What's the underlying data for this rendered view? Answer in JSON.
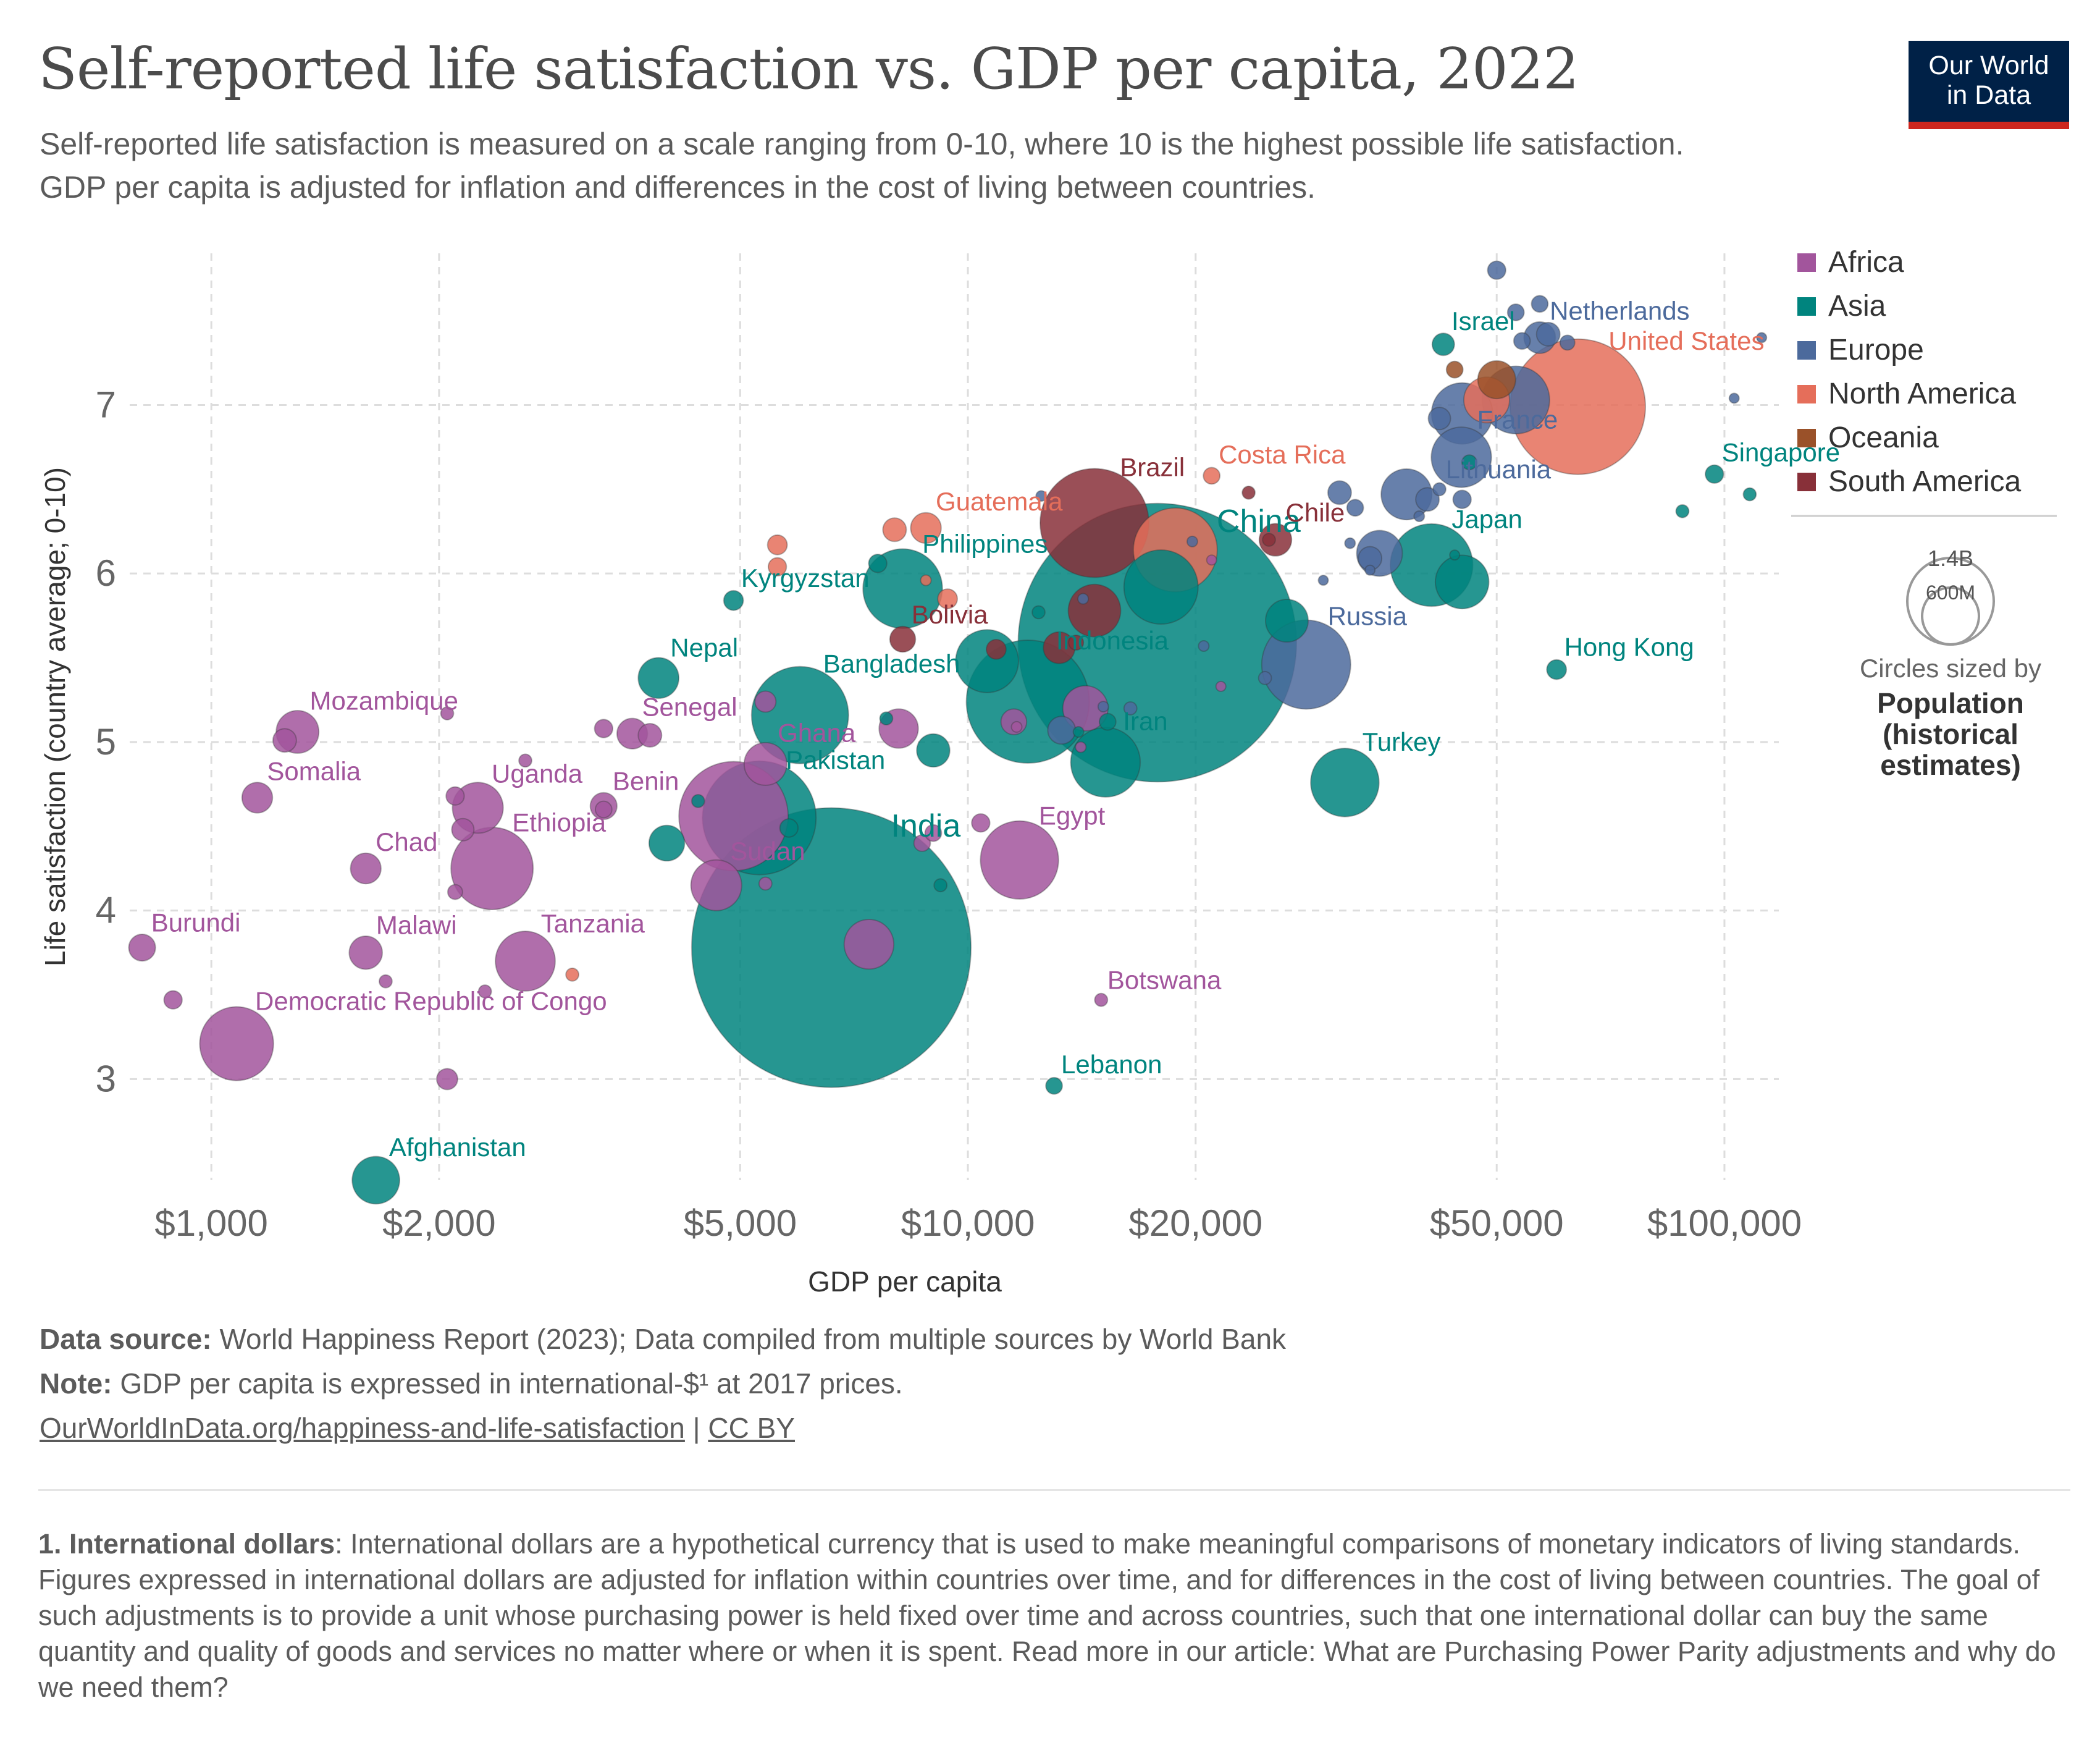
{
  "title": "Self-reported life satisfaction vs. GDP per capita, 2022",
  "subtitle": "Self-reported life satisfaction is measured on a scale ranging from 0-10, where 10 is the highest possible life satisfaction. GDP per capita is adjusted for inflation and differences in the cost of living between countries.",
  "logo": {
    "line1": "Our World",
    "line2": "in Data"
  },
  "colors": {
    "Africa": "#a2559c",
    "Asia": "#00847e",
    "Europe": "#4c6a9c",
    "North America": "#e56e5a",
    "Oceania": "#9a5129",
    "South America": "#883039"
  },
  "size_legend": {
    "big": "1.4B",
    "small": "600M",
    "caption1": "Circles sized by",
    "caption2": "Population",
    "caption3": "(historical",
    "caption4": "estimates)"
  },
  "footer": {
    "source_label": "Data source:",
    "source_text": "World Happiness Report (2023); Data compiled from multiple sources by World Bank",
    "note_label": "Note:",
    "note_text": "GDP per capita is expressed in international-$¹ at 2017 prices.",
    "url": "OurWorldInData.org/happiness-and-life-satisfaction",
    "separator": "|",
    "license": "CC BY"
  },
  "footnote": {
    "label": "1. International dollars",
    "text": ": International dollars are a hypothetical currency that is used to make meaningful comparisons of monetary indicators of living standards. Figures expressed in international dollars are adjusted for inflation within countries over time, and for differences in the cost of living between countries. The goal of such adjustments is to provide a unit whose purchasing power is held fixed over time and across countries, such that one international dollar can buy the same quantity and quality of goods and services no matter where or when it is spent. Read more in our article: What are Purchasing Power Parity adjustments and why do we need them?"
  },
  "chart_data": {
    "type": "scatter",
    "title": "Self-reported life satisfaction vs. GDP per capita, 2022",
    "xlabel": "GDP per capita",
    "ylabel": "Life satisfaction (country average; 0-10)",
    "x_scale": "log",
    "xlim": [
      780,
      118000
    ],
    "ylim": [
      2.4,
      7.9
    ],
    "x_ticks": [
      1000,
      2000,
      5000,
      10000,
      20000,
      50000,
      100000
    ],
    "x_tick_labels": [
      "$1,000",
      "$2,000",
      "$5,000",
      "$10,000",
      "$20,000",
      "$50,000",
      "$100,000"
    ],
    "y_ticks": [
      3,
      4,
      5,
      6,
      7
    ],
    "y_tick_labels": [
      "3",
      "4",
      "5",
      "6",
      "7"
    ],
    "grid": true,
    "legend": [
      "Africa",
      "Asia",
      "Europe",
      "North America",
      "Oceania",
      "South America"
    ],
    "legend_position": "right",
    "size_by": "Population (historical estimates)",
    "points": [
      {
        "label": "India",
        "region": "Asia",
        "x": 6600,
        "y": 3.78,
        "pop": 1420
      },
      {
        "label": "China",
        "region": "Asia",
        "x": 17800,
        "y": 5.59,
        "pop": 1410
      },
      {
        "label": "United States",
        "region": "North America",
        "x": 64000,
        "y": 6.99,
        "pop": 333
      },
      {
        "label": "Indonesia",
        "region": "Asia",
        "x": 12000,
        "y": 5.24,
        "pop": 275
      },
      {
        "label": "Pakistan",
        "region": "Asia",
        "x": 5300,
        "y": 4.55,
        "pop": 235
      },
      {
        "label": "Brazil",
        "region": "South America",
        "x": 14700,
        "y": 6.3,
        "pop": 215
      },
      {
        "label": "Bangladesh",
        "region": "Asia",
        "x": 6000,
        "y": 5.16,
        "pop": 171
      },
      {
        "label": "Russia",
        "region": "Europe",
        "x": 28000,
        "y": 5.46,
        "pop": 144
      },
      {
        "label": "Japan",
        "region": "Asia",
        "x": 41000,
        "y": 6.05,
        "pop": 124
      },
      {
        "label": "Philippines",
        "region": "Asia",
        "x": 8200,
        "y": 5.91,
        "pop": 115
      },
      {
        "label": "Egypt",
        "region": "Africa",
        "x": 11700,
        "y": 4.3,
        "pop": 111
      },
      {
        "label": "Ethiopia",
        "region": "Africa",
        "x": 2350,
        "y": 4.25,
        "pop": 123
      },
      {
        "label": "Democratic Republic of Congo",
        "region": "Africa",
        "x": 1080,
        "y": 3.21,
        "pop": 99
      },
      {
        "label": "Iran",
        "region": "Asia",
        "x": 15200,
        "y": 4.88,
        "pop": 88
      },
      {
        "label": "Turkey",
        "region": "Asia",
        "x": 31500,
        "y": 4.76,
        "pop": 85
      },
      {
        "label": "Tanzania",
        "region": "Africa",
        "x": 2600,
        "y": 3.7,
        "pop": 65
      },
      {
        "label": "Uganda",
        "region": "Africa",
        "x": 2250,
        "y": 4.61,
        "pop": 47
      },
      {
        "label": "Sudan",
        "region": "Africa",
        "x": 4650,
        "y": 4.15,
        "pop": 47
      },
      {
        "label": "France",
        "region": "Europe",
        "x": 44900,
        "y": 6.69,
        "pop": 66
      },
      {
        "label": "Costa Rica",
        "region": "North America",
        "x": 21000,
        "y": 6.58,
        "pop": 5
      },
      {
        "label": "Guatemala",
        "region": "North America",
        "x": 8800,
        "y": 6.27,
        "pop": 17
      },
      {
        "label": "Chile",
        "region": "South America",
        "x": 25500,
        "y": 6.2,
        "pop": 19
      },
      {
        "label": "Bolivia",
        "region": "South America",
        "x": 8200,
        "y": 5.61,
        "pop": 12
      },
      {
        "label": "Kyrgyzstan",
        "region": "Asia",
        "x": 4900,
        "y": 5.84,
        "pop": 7
      },
      {
        "label": "Nepal",
        "region": "Asia",
        "x": 3900,
        "y": 5.38,
        "pop": 30
      },
      {
        "label": "Senegal",
        "region": "Africa",
        "x": 3600,
        "y": 5.05,
        "pop": 17
      },
      {
        "label": "Ghana",
        "region": "Africa",
        "x": 5400,
        "y": 4.87,
        "pop": 33
      },
      {
        "label": "Benin",
        "region": "Africa",
        "x": 3300,
        "y": 4.62,
        "pop": 13
      },
      {
        "label": "Mozambique",
        "region": "Africa",
        "x": 1300,
        "y": 5.06,
        "pop": 33
      },
      {
        "label": "Somalia",
        "region": "Africa",
        "x": 1150,
        "y": 4.67,
        "pop": 17
      },
      {
        "label": "Chad",
        "region": "Africa",
        "x": 1600,
        "y": 4.25,
        "pop": 17
      },
      {
        "label": "Burundi",
        "region": "Africa",
        "x": 810,
        "y": 3.78,
        "pop": 13
      },
      {
        "label": "Malawi",
        "region": "Africa",
        "x": 1600,
        "y": 3.75,
        "pop": 20
      },
      {
        "label": "Botswana",
        "region": "Africa",
        "x": 15000,
        "y": 3.47,
        "pop": 3
      },
      {
        "label": "Lebanon",
        "region": "Asia",
        "x": 13000,
        "y": 2.96,
        "pop": 5
      },
      {
        "label": "Afghanistan",
        "region": "Asia",
        "x": 1650,
        "y": 2.4,
        "pop": 41
      },
      {
        "label": "Israel",
        "region": "Asia",
        "x": 42500,
        "y": 7.36,
        "pop": 9
      },
      {
        "label": "Netherlands",
        "region": "Europe",
        "x": 57000,
        "y": 7.4,
        "pop": 18
      },
      {
        "label": "Lithuania",
        "region": "Europe",
        "x": 42000,
        "y": 6.5,
        "pop": 3
      },
      {
        "label": "Singapore",
        "region": "Asia",
        "x": 97000,
        "y": 6.59,
        "pop": 6
      },
      {
        "label": "Hong Kong",
        "region": "Asia",
        "x": 60000,
        "y": 5.43,
        "pop": 7
      },
      {
        "label": "",
        "region": "Europe",
        "x": 50000,
        "y": 7.8,
        "pop": 6
      },
      {
        "label": "",
        "region": "Europe",
        "x": 57000,
        "y": 7.6,
        "pop": 5
      },
      {
        "label": "",
        "region": "Europe",
        "x": 53000,
        "y": 7.55,
        "pop": 5
      },
      {
        "label": "",
        "region": "Europe",
        "x": 58500,
        "y": 7.42,
        "pop": 10
      },
      {
        "label": "",
        "region": "Europe",
        "x": 54000,
        "y": 7.38,
        "pop": 5
      },
      {
        "label": "",
        "region": "Europe",
        "x": 62000,
        "y": 7.37,
        "pop": 4
      },
      {
        "label": "",
        "region": "Europe",
        "x": 112000,
        "y": 7.4,
        "pop": 1
      },
      {
        "label": "",
        "region": "Oceania",
        "x": 44000,
        "y": 7.21,
        "pop": 5
      },
      {
        "label": "",
        "region": "Oceania",
        "x": 50000,
        "y": 7.15,
        "pop": 26
      },
      {
        "label": "",
        "region": "North America",
        "x": 48500,
        "y": 7.03,
        "pop": 38
      },
      {
        "label": "",
        "region": "Europe",
        "x": 53000,
        "y": 7.03,
        "pop": 83
      },
      {
        "label": "",
        "region": "Europe",
        "x": 45000,
        "y": 6.95,
        "pop": 68
      },
      {
        "label": "",
        "region": "Europe",
        "x": 42000,
        "y": 6.92,
        "pop": 9
      },
      {
        "label": "",
        "region": "Europe",
        "x": 103000,
        "y": 7.04,
        "pop": 1
      },
      {
        "label": "",
        "region": "Asia",
        "x": 46000,
        "y": 6.66,
        "pop": 4
      },
      {
        "label": "",
        "region": "Asia",
        "x": 108000,
        "y": 6.47,
        "pop": 3
      },
      {
        "label": "",
        "region": "Asia",
        "x": 88000,
        "y": 6.37,
        "pop": 3
      },
      {
        "label": "",
        "region": "Europe",
        "x": 38000,
        "y": 6.47,
        "pop": 47
      },
      {
        "label": "",
        "region": "Europe",
        "x": 40500,
        "y": 6.44,
        "pop": 10
      },
      {
        "label": "",
        "region": "Europe",
        "x": 45000,
        "y": 6.44,
        "pop": 6
      },
      {
        "label": "",
        "region": "Europe",
        "x": 39500,
        "y": 6.34,
        "pop": 2
      },
      {
        "label": "",
        "region": "Europe",
        "x": 31000,
        "y": 6.48,
        "pop": 10
      },
      {
        "label": "",
        "region": "Europe",
        "x": 32500,
        "y": 6.39,
        "pop": 5
      },
      {
        "label": "",
        "region": "Europe",
        "x": 35000,
        "y": 6.12,
        "pop": 38
      },
      {
        "label": "",
        "region": "Europe",
        "x": 34000,
        "y": 6.09,
        "pop": 10
      },
      {
        "label": "",
        "region": "Europe",
        "x": 32000,
        "y": 6.18,
        "pop": 2
      },
      {
        "label": "",
        "region": "Europe",
        "x": 34000,
        "y": 6.02,
        "pop": 1
      },
      {
        "label": "",
        "region": "Europe",
        "x": 29500,
        "y": 5.96,
        "pop": 1
      },
      {
        "label": "",
        "region": "Asia",
        "x": 45000,
        "y": 5.95,
        "pop": 52
      },
      {
        "label": "",
        "region": "Asia",
        "x": 44000,
        "y": 6.11,
        "pop": 1
      },
      {
        "label": "",
        "region": "North America",
        "x": 18800,
        "y": 6.14,
        "pop": 128
      },
      {
        "label": "",
        "region": "South America",
        "x": 25000,
        "y": 6.2,
        "pop": 3
      },
      {
        "label": "",
        "region": "South America",
        "x": 23500,
        "y": 6.48,
        "pop": 3
      },
      {
        "label": "",
        "region": "Africa",
        "x": 21000,
        "y": 6.08,
        "pop": 1
      },
      {
        "label": "",
        "region": "Europe",
        "x": 19800,
        "y": 6.19,
        "pop": 2
      },
      {
        "label": "",
        "region": "Europe",
        "x": 12500,
        "y": 6.46,
        "pop": 2
      },
      {
        "label": "",
        "region": "North America",
        "x": 8000,
        "y": 6.26,
        "pop": 10
      },
      {
        "label": "",
        "region": "North America",
        "x": 5600,
        "y": 6.17,
        "pop": 7
      },
      {
        "label": "",
        "region": "North America",
        "x": 5600,
        "y": 6.04,
        "pop": 6
      },
      {
        "label": "",
        "region": "North America",
        "x": 8800,
        "y": 5.96,
        "pop": 2
      },
      {
        "label": "",
        "region": "North America",
        "x": 9400,
        "y": 5.85,
        "pop": 7
      },
      {
        "label": "",
        "region": "Asia",
        "x": 7600,
        "y": 6.06,
        "pop": 6
      },
      {
        "label": "",
        "region": "Asia",
        "x": 18000,
        "y": 5.92,
        "pop": 100
      },
      {
        "label": "",
        "region": "South America",
        "x": 14700,
        "y": 5.78,
        "pop": 50
      },
      {
        "label": "",
        "region": "Asia",
        "x": 12400,
        "y": 5.77,
        "pop": 3
      },
      {
        "label": "",
        "region": "Europe",
        "x": 14200,
        "y": 5.85,
        "pop": 2
      },
      {
        "label": "",
        "region": "South America",
        "x": 13200,
        "y": 5.56,
        "pop": 18
      },
      {
        "label": "",
        "region": "South America",
        "x": 13900,
        "y": 5.59,
        "pop": 4
      },
      {
        "label": "",
        "region": "South America",
        "x": 10900,
        "y": 5.55,
        "pop": 7
      },
      {
        "label": "",
        "region": "Asia",
        "x": 10600,
        "y": 5.48,
        "pop": 72
      },
      {
        "label": "",
        "region": "Asia",
        "x": 26400,
        "y": 5.72,
        "pop": 33
      },
      {
        "label": "",
        "region": "Europe",
        "x": 20500,
        "y": 5.57,
        "pop": 2
      },
      {
        "label": "",
        "region": "Europe",
        "x": 24700,
        "y": 5.38,
        "pop": 3
      },
      {
        "label": "",
        "region": "Africa",
        "x": 21600,
        "y": 5.33,
        "pop": 1
      },
      {
        "label": "",
        "region": "Europe",
        "x": 16400,
        "y": 5.2,
        "pop": 3
      },
      {
        "label": "",
        "region": "Africa",
        "x": 14300,
        "y": 5.2,
        "pop": 37
      },
      {
        "label": "",
        "region": "Europe",
        "x": 15100,
        "y": 5.21,
        "pop": 2
      },
      {
        "label": "",
        "region": "Asia",
        "x": 15300,
        "y": 5.12,
        "pop": 5
      },
      {
        "label": "",
        "region": "Asia",
        "x": 14000,
        "y": 5.06,
        "pop": 2
      },
      {
        "label": "",
        "region": "Africa",
        "x": 11500,
        "y": 5.12,
        "pop": 12
      },
      {
        "label": "",
        "region": "Africa",
        "x": 11600,
        "y": 5.09,
        "pop": 2
      },
      {
        "label": "",
        "region": "Europe",
        "x": 13300,
        "y": 5.07,
        "pop": 14
      },
      {
        "label": "",
        "region": "Africa",
        "x": 8100,
        "y": 5.08,
        "pop": 28
      },
      {
        "label": "",
        "region": "Asia",
        "x": 7800,
        "y": 5.14,
        "pop": 3
      },
      {
        "label": "",
        "region": "Asia",
        "x": 9000,
        "y": 4.95,
        "pop": 20
      },
      {
        "label": "",
        "region": "Africa",
        "x": 14100,
        "y": 4.97,
        "pop": 2
      },
      {
        "label": "",
        "region": "Africa",
        "x": 5400,
        "y": 5.24,
        "pop": 8
      },
      {
        "label": "",
        "region": "Africa",
        "x": 2050,
        "y": 5.17,
        "pop": 3
      },
      {
        "label": "",
        "region": "Africa",
        "x": 3300,
        "y": 5.08,
        "pop": 6
      },
      {
        "label": "",
        "region": "Africa",
        "x": 3800,
        "y": 5.04,
        "pop": 10
      },
      {
        "label": "",
        "region": "Africa",
        "x": 2600,
        "y": 4.89,
        "pop": 3
      },
      {
        "label": "",
        "region": "Africa",
        "x": 1250,
        "y": 5.01,
        "pop": 10
      },
      {
        "label": "",
        "region": "Africa",
        "x": 3300,
        "y": 4.6,
        "pop": 5
      },
      {
        "label": "",
        "region": "Africa",
        "x": 4900,
        "y": 4.56,
        "pop": 217
      },
      {
        "label": "",
        "region": "Asia",
        "x": 4400,
        "y": 4.65,
        "pop": 3
      },
      {
        "label": "",
        "region": "Asia",
        "x": 5800,
        "y": 4.49,
        "pop": 6
      },
      {
        "label": "",
        "region": "Asia",
        "x": 4000,
        "y": 4.4,
        "pop": 23
      },
      {
        "label": "",
        "region": "Africa",
        "x": 2100,
        "y": 4.68,
        "pop": 6
      },
      {
        "label": "",
        "region": "Africa",
        "x": 2150,
        "y": 4.48,
        "pop": 9
      },
      {
        "label": "",
        "region": "Africa",
        "x": 8700,
        "y": 4.4,
        "pop": 5
      },
      {
        "label": "",
        "region": "Africa",
        "x": 9000,
        "y": 4.46,
        "pop": 5
      },
      {
        "label": "",
        "region": "Africa",
        "x": 10400,
        "y": 4.52,
        "pop": 6
      },
      {
        "label": "",
        "region": "Africa",
        "x": 5400,
        "y": 4.16,
        "pop": 3
      },
      {
        "label": "",
        "region": "Africa",
        "x": 2100,
        "y": 4.11,
        "pop": 4
      },
      {
        "label": "",
        "region": "Asia",
        "x": 9200,
        "y": 4.15,
        "pop": 3
      },
      {
        "label": "",
        "region": "Africa",
        "x": 7400,
        "y": 3.8,
        "pop": 45
      },
      {
        "label": "",
        "region": "Africa",
        "x": 1700,
        "y": 3.58,
        "pop": 3
      },
      {
        "label": "",
        "region": "Africa",
        "x": 2300,
        "y": 3.52,
        "pop": 3
      },
      {
        "label": "",
        "region": "North America",
        "x": 3000,
        "y": 3.62,
        "pop": 3
      },
      {
        "label": "",
        "region": "Africa",
        "x": 890,
        "y": 3.47,
        "pop": 6
      },
      {
        "label": "",
        "region": "Africa",
        "x": 2050,
        "y": 3.0,
        "pop": 8
      }
    ]
  }
}
